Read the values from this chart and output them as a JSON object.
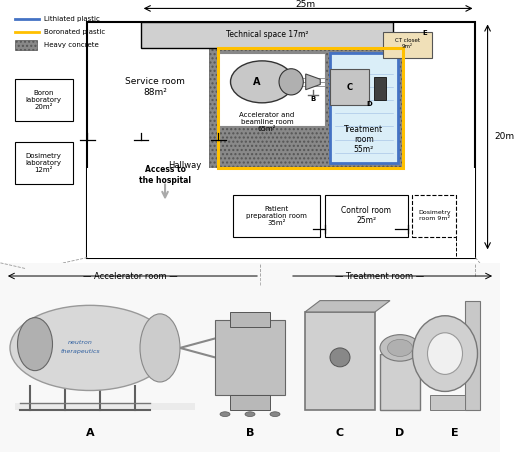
{
  "bg_color": "#ffffff",
  "upper": {
    "legend": {
      "lithiated_color": "#4472c4",
      "boronated_color": "#ffc000",
      "concrete_color": "#808080"
    },
    "concrete_fill": "#888888",
    "concrete_dot_color": "#666666",
    "tech_space_fill": "#c8c8c8",
    "treatment_room_fill": "#e8f4fb",
    "ct_closet_fill": "#f0e0c0",
    "white_room_fill": "#ffffff",
    "dim_25m": "25m",
    "dim_20m": "20m"
  },
  "lower": {
    "bg_color": "#f5f5f5",
    "acc_room_label": "Accelerator room",
    "treat_room_label": "Treatment room"
  }
}
